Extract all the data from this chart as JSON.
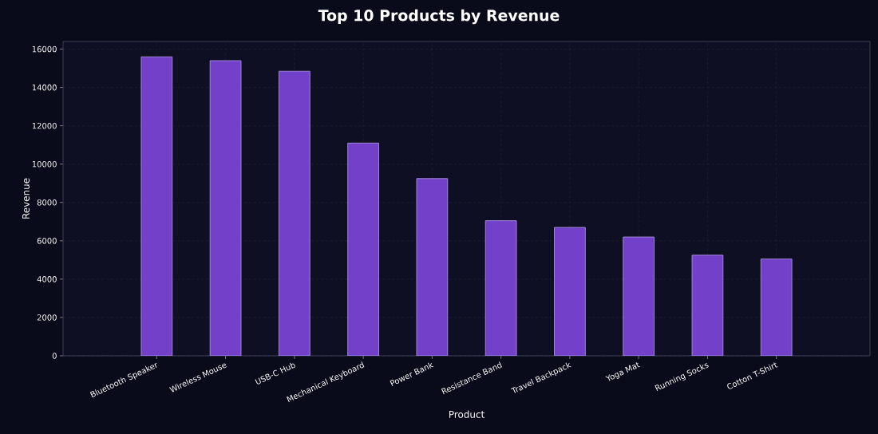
{
  "chart_data": {
    "type": "bar",
    "title": "Top 10 Products by Revenue",
    "xlabel": "Product",
    "ylabel": "Revenue",
    "categories": [
      "Bluetooth Speaker",
      "Wireless Mouse",
      "USB-C Hub",
      "Mechanical Keyboard",
      "Power Bank",
      "Resistance Band",
      "Travel Backpack",
      "Yoga Mat",
      "Running Socks",
      "Cotton T-Shirt"
    ],
    "values": [
      15600,
      15400,
      14850,
      11100,
      9250,
      7050,
      6700,
      6200,
      5250,
      5050
    ],
    "color": "#7341c9",
    "ylim": [
      0,
      16400
    ],
    "yticks": [
      0,
      2000,
      4000,
      6000,
      8000,
      10000,
      12000,
      14000,
      16000
    ],
    "grid": true
  }
}
